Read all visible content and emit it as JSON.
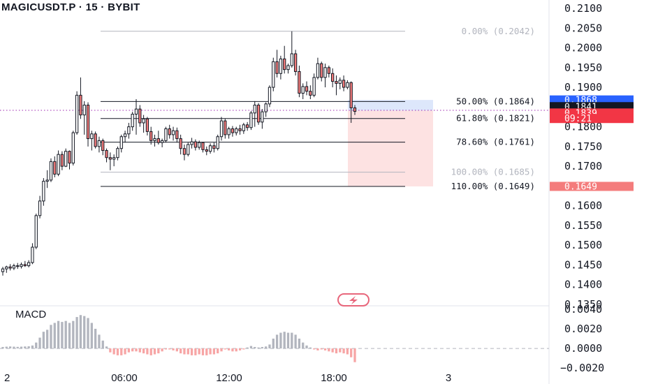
{
  "header": {
    "title": "MAGICUSDT.P · 15 · BYBIT",
    "macd_label": "MACD"
  },
  "colors": {
    "up": "#ffffff",
    "down": "#f47c7c",
    "candle_outline": "#131722",
    "hist_up": "#b2b5be",
    "hist_down": "#f7a5a5",
    "current_price": "#f23645",
    "short_zone": "#fde2e2",
    "target_zone": "#dde7fb",
    "accent_blue": "#2962ff"
  },
  "chart_data": {
    "type": "candlestick",
    "symbol": "MAGICUSDT.P",
    "interval": "15",
    "exchange": "BYBIT",
    "price_axis": {
      "ylim": [
        0.135,
        0.21
      ],
      "ticks": [
        "0.2100",
        "0.2050",
        "0.2000",
        "0.1950",
        "0.1900",
        "0.1800",
        "0.1750",
        "0.1700",
        "0.1650",
        "0.1600",
        "0.1550",
        "0.1500",
        "0.1450",
        "0.1400",
        "0.1350"
      ]
    },
    "macd_axis": {
      "ylim": [
        -0.0022,
        0.0042
      ],
      "ticks": [
        "0.0040",
        "0.0020",
        "0.0000",
        "−0.0020"
      ]
    },
    "x_ticks": [
      "2",
      "06:00",
      "12:00",
      "18:00",
      "3"
    ],
    "candles": [
      {
        "o": 0.1433,
        "h": 0.1445,
        "l": 0.1423,
        "c": 0.144
      },
      {
        "o": 0.144,
        "h": 0.1448,
        "l": 0.143,
        "c": 0.1445
      },
      {
        "o": 0.1445,
        "h": 0.1452,
        "l": 0.1436,
        "c": 0.1442
      },
      {
        "o": 0.1442,
        "h": 0.1453,
        "l": 0.1437,
        "c": 0.1448
      },
      {
        "o": 0.1448,
        "h": 0.1455,
        "l": 0.144,
        "c": 0.1446
      },
      {
        "o": 0.1446,
        "h": 0.1456,
        "l": 0.1441,
        "c": 0.1451
      },
      {
        "o": 0.1451,
        "h": 0.146,
        "l": 0.1445,
        "c": 0.1448
      },
      {
        "o": 0.1448,
        "h": 0.1462,
        "l": 0.1444,
        "c": 0.1456
      },
      {
        "o": 0.1456,
        "h": 0.1505,
        "l": 0.1452,
        "c": 0.1495
      },
      {
        "o": 0.1495,
        "h": 0.158,
        "l": 0.149,
        "c": 0.1575
      },
      {
        "o": 0.1575,
        "h": 0.1625,
        "l": 0.1568,
        "c": 0.1612
      },
      {
        "o": 0.1612,
        "h": 0.167,
        "l": 0.16,
        "c": 0.1662
      },
      {
        "o": 0.1662,
        "h": 0.169,
        "l": 0.1645,
        "c": 0.1665
      },
      {
        "o": 0.1665,
        "h": 0.172,
        "l": 0.166,
        "c": 0.1712
      },
      {
        "o": 0.1712,
        "h": 0.1725,
        "l": 0.1672,
        "c": 0.168
      },
      {
        "o": 0.168,
        "h": 0.174,
        "l": 0.1675,
        "c": 0.173
      },
      {
        "o": 0.173,
        "h": 0.1738,
        "l": 0.169,
        "c": 0.17
      },
      {
        "o": 0.17,
        "h": 0.1745,
        "l": 0.1698,
        "c": 0.1738
      },
      {
        "o": 0.1738,
        "h": 0.174,
        "l": 0.1692,
        "c": 0.1708
      },
      {
        "o": 0.1708,
        "h": 0.179,
        "l": 0.1702,
        "c": 0.1785
      },
      {
        "o": 0.1785,
        "h": 0.189,
        "l": 0.178,
        "c": 0.188
      },
      {
        "o": 0.188,
        "h": 0.1925,
        "l": 0.182,
        "c": 0.183
      },
      {
        "o": 0.183,
        "h": 0.1865,
        "l": 0.178,
        "c": 0.1855
      },
      {
        "o": 0.1855,
        "h": 0.1862,
        "l": 0.175,
        "c": 0.177
      },
      {
        "o": 0.177,
        "h": 0.179,
        "l": 0.174,
        "c": 0.1782
      },
      {
        "o": 0.1782,
        "h": 0.1788,
        "l": 0.1745,
        "c": 0.175
      },
      {
        "o": 0.175,
        "h": 0.1775,
        "l": 0.1735,
        "c": 0.1765
      },
      {
        "o": 0.1765,
        "h": 0.177,
        "l": 0.1728,
        "c": 0.174
      },
      {
        "o": 0.174,
        "h": 0.1745,
        "l": 0.171,
        "c": 0.1722
      },
      {
        "o": 0.1722,
        "h": 0.1735,
        "l": 0.169,
        "c": 0.1718
      },
      {
        "o": 0.1718,
        "h": 0.173,
        "l": 0.17,
        "c": 0.1722
      },
      {
        "o": 0.1722,
        "h": 0.175,
        "l": 0.1715,
        "c": 0.1745
      },
      {
        "o": 0.1745,
        "h": 0.178,
        "l": 0.1735,
        "c": 0.1775
      },
      {
        "o": 0.1775,
        "h": 0.179,
        "l": 0.176,
        "c": 0.1782
      },
      {
        "o": 0.1782,
        "h": 0.181,
        "l": 0.177,
        "c": 0.18
      },
      {
        "o": 0.18,
        "h": 0.1838,
        "l": 0.179,
        "c": 0.1832
      },
      {
        "o": 0.1832,
        "h": 0.187,
        "l": 0.178,
        "c": 0.1845
      },
      {
        "o": 0.1845,
        "h": 0.1855,
        "l": 0.18,
        "c": 0.181
      },
      {
        "o": 0.181,
        "h": 0.183,
        "l": 0.1785,
        "c": 0.182
      },
      {
        "o": 0.182,
        "h": 0.1825,
        "l": 0.1778,
        "c": 0.1788
      },
      {
        "o": 0.1788,
        "h": 0.18,
        "l": 0.1755,
        "c": 0.1765
      },
      {
        "o": 0.1765,
        "h": 0.178,
        "l": 0.175,
        "c": 0.177
      },
      {
        "o": 0.177,
        "h": 0.179,
        "l": 0.1755,
        "c": 0.176
      },
      {
        "o": 0.176,
        "h": 0.177,
        "l": 0.1748,
        "c": 0.1765
      },
      {
        "o": 0.1765,
        "h": 0.18,
        "l": 0.176,
        "c": 0.1795
      },
      {
        "o": 0.1795,
        "h": 0.1805,
        "l": 0.177,
        "c": 0.178
      },
      {
        "o": 0.178,
        "h": 0.18,
        "l": 0.1765,
        "c": 0.179
      },
      {
        "o": 0.179,
        "h": 0.1798,
        "l": 0.176,
        "c": 0.177
      },
      {
        "o": 0.177,
        "h": 0.178,
        "l": 0.173,
        "c": 0.1745
      },
      {
        "o": 0.1745,
        "h": 0.1755,
        "l": 0.1715,
        "c": 0.173
      },
      {
        "o": 0.173,
        "h": 0.176,
        "l": 0.1725,
        "c": 0.1755
      },
      {
        "o": 0.1755,
        "h": 0.1772,
        "l": 0.1745,
        "c": 0.1762
      },
      {
        "o": 0.1762,
        "h": 0.1768,
        "l": 0.174,
        "c": 0.1748
      },
      {
        "o": 0.1748,
        "h": 0.1765,
        "l": 0.1742,
        "c": 0.176
      },
      {
        "o": 0.176,
        "h": 0.1762,
        "l": 0.1735,
        "c": 0.1742
      },
      {
        "o": 0.1742,
        "h": 0.175,
        "l": 0.1728,
        "c": 0.1738
      },
      {
        "o": 0.1738,
        "h": 0.1758,
        "l": 0.1732,
        "c": 0.1752
      },
      {
        "o": 0.1752,
        "h": 0.176,
        "l": 0.1735,
        "c": 0.1745
      },
      {
        "o": 0.1745,
        "h": 0.178,
        "l": 0.174,
        "c": 0.1775
      },
      {
        "o": 0.1775,
        "h": 0.1825,
        "l": 0.1765,
        "c": 0.1815
      },
      {
        "o": 0.1815,
        "h": 0.182,
        "l": 0.177,
        "c": 0.178
      },
      {
        "o": 0.178,
        "h": 0.18,
        "l": 0.177,
        "c": 0.1795
      },
      {
        "o": 0.1795,
        "h": 0.1802,
        "l": 0.1775,
        "c": 0.1785
      },
      {
        "o": 0.1785,
        "h": 0.18,
        "l": 0.1778,
        "c": 0.1795
      },
      {
        "o": 0.1795,
        "h": 0.1805,
        "l": 0.178,
        "c": 0.179
      },
      {
        "o": 0.179,
        "h": 0.181,
        "l": 0.1782,
        "c": 0.1805
      },
      {
        "o": 0.1805,
        "h": 0.1812,
        "l": 0.179,
        "c": 0.1798
      },
      {
        "o": 0.1798,
        "h": 0.184,
        "l": 0.1792,
        "c": 0.1835
      },
      {
        "o": 0.1835,
        "h": 0.1865,
        "l": 0.18,
        "c": 0.1855
      },
      {
        "o": 0.1855,
        "h": 0.186,
        "l": 0.1805,
        "c": 0.1812
      },
      {
        "o": 0.1812,
        "h": 0.1845,
        "l": 0.1795,
        "c": 0.1838
      },
      {
        "o": 0.1838,
        "h": 0.1862,
        "l": 0.1825,
        "c": 0.1858
      },
      {
        "o": 0.1858,
        "h": 0.1905,
        "l": 0.185,
        "c": 0.19
      },
      {
        "o": 0.19,
        "h": 0.1975,
        "l": 0.189,
        "c": 0.1965
      },
      {
        "o": 0.1965,
        "h": 0.1995,
        "l": 0.1925,
        "c": 0.1935
      },
      {
        "o": 0.1935,
        "h": 0.198,
        "l": 0.192,
        "c": 0.1972
      },
      {
        "o": 0.1972,
        "h": 0.2005,
        "l": 0.1935,
        "c": 0.1945
      },
      {
        "o": 0.1945,
        "h": 0.196,
        "l": 0.1935,
        "c": 0.1955
      },
      {
        "o": 0.1955,
        "h": 0.2042,
        "l": 0.195,
        "c": 0.1985
      },
      {
        "o": 0.1985,
        "h": 0.1995,
        "l": 0.193,
        "c": 0.194
      },
      {
        "o": 0.194,
        "h": 0.1955,
        "l": 0.1875,
        "c": 0.1885
      },
      {
        "o": 0.1885,
        "h": 0.191,
        "l": 0.187,
        "c": 0.1902
      },
      {
        "o": 0.1902,
        "h": 0.1915,
        "l": 0.188,
        "c": 0.189
      },
      {
        "o": 0.189,
        "h": 0.1905,
        "l": 0.187,
        "c": 0.188
      },
      {
        "o": 0.188,
        "h": 0.1935,
        "l": 0.1875,
        "c": 0.1925
      },
      {
        "o": 0.1925,
        "h": 0.1975,
        "l": 0.192,
        "c": 0.196
      },
      {
        "o": 0.196,
        "h": 0.1965,
        "l": 0.1915,
        "c": 0.1925
      },
      {
        "o": 0.1925,
        "h": 0.196,
        "l": 0.19,
        "c": 0.195
      },
      {
        "o": 0.195,
        "h": 0.1955,
        "l": 0.1925,
        "c": 0.1935
      },
      {
        "o": 0.1935,
        "h": 0.1948,
        "l": 0.19,
        "c": 0.1915
      },
      {
        "o": 0.1915,
        "h": 0.193,
        "l": 0.188,
        "c": 0.191
      },
      {
        "o": 0.191,
        "h": 0.1925,
        "l": 0.1895,
        "c": 0.1918
      },
      {
        "o": 0.1918,
        "h": 0.193,
        "l": 0.189,
        "c": 0.19
      },
      {
        "o": 0.19,
        "h": 0.1918,
        "l": 0.1895,
        "c": 0.1912
      },
      {
        "o": 0.1912,
        "h": 0.1915,
        "l": 0.181,
        "c": 0.1848
      },
      {
        "o": 0.1848,
        "h": 0.1855,
        "l": 0.183,
        "c": 0.1839
      }
    ],
    "macd_histogram": [
      0.00015,
      0.00018,
      0.0002,
      0.00018,
      0.00016,
      0.00018,
      0.0002,
      0.00022,
      0.0003,
      0.0006,
      0.0011,
      0.0017,
      0.0019,
      0.0024,
      0.0026,
      0.0028,
      0.0027,
      0.0028,
      0.0026,
      0.0028,
      0.0032,
      0.0034,
      0.0033,
      0.0031,
      0.0026,
      0.002,
      0.0014,
      0.0008,
      0.0002,
      -0.0004,
      -0.0006,
      -0.0007,
      -0.0007,
      -0.0006,
      -0.0004,
      -0.0003,
      -0.0003,
      -0.0004,
      -0.0005,
      -0.0006,
      -0.0007,
      -0.0006,
      -0.0005,
      -0.0003,
      -0.0001,
      -0.0001,
      -0.0002,
      -0.0003,
      -0.0005,
      -0.0006,
      -0.0006,
      -0.0007,
      -0.0007,
      -0.0006,
      -0.0007,
      -0.0007,
      -0.0006,
      -0.0006,
      -0.0005,
      -0.0003,
      -0.0001,
      -0.0002,
      -0.0003,
      -0.0003,
      -0.0002,
      -0.0001,
      0.0001,
      0.00025,
      0.00015,
      0.0001,
      0.00015,
      0.0002,
      0.0004,
      0.001,
      0.0014,
      0.0016,
      0.0017,
      0.0016,
      0.0016,
      0.0014,
      0.001,
      0.0006,
      0.0003,
      0.0001,
      -0.0001,
      -0.0002,
      -0.0001,
      -0.0002,
      -0.0003,
      -0.0004,
      -0.0005,
      -0.0004,
      -0.0005,
      -0.0006,
      -0.0009,
      -0.0014
    ]
  },
  "fib_levels": [
    {
      "text": "0.00% (0.2042)",
      "price": 0.2042,
      "muted": true
    },
    {
      "text": "50.00% (0.1864)",
      "price": 0.1864,
      "muted": false
    },
    {
      "text": "61.80% (0.1821)",
      "price": 0.1821,
      "muted": false
    },
    {
      "text": "78.60% (0.1761)",
      "price": 0.1761,
      "muted": false
    },
    {
      "text": "100.00% (0.1685)",
      "price": 0.1685,
      "muted": true
    },
    {
      "text": "110.00% (0.1649)",
      "price": 0.1649,
      "muted": false
    }
  ],
  "price_badges": [
    {
      "text": "0.1868",
      "price": 0.1868,
      "bg": "#2962ff",
      "shape": "badge"
    },
    {
      "text": "0.1841",
      "price": 0.1851,
      "bg": "#131722",
      "shape": "badge"
    },
    {
      "text": "0.1839",
      "price": 0.1835,
      "bg": "#f23645",
      "shape": "top"
    },
    {
      "text": "09:21",
      "price": 0.1821,
      "bg": "#f23645",
      "shape": "bottom"
    },
    {
      "text": "0.1649",
      "price": 0.1649,
      "bg": "#f47c7c",
      "shape": "badge"
    }
  ],
  "current_price": 0.1839,
  "position": {
    "entry": 0.1841,
    "target": 0.1868,
    "stop": 0.1649
  }
}
